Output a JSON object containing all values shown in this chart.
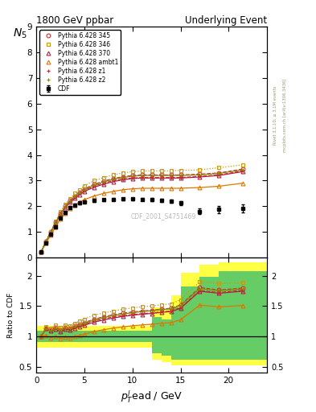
{
  "title_left": "1800 GeV ppbar",
  "title_right": "Underlying Event",
  "xlabel": "$p_T^l$ead / GeV",
  "ylabel_main": "$N_5$",
  "ylabel_ratio": "Ratio to CDF",
  "watermark": "CDF_2001_S4751469",
  "right_label": "mcplots.cern.ch [arXiv:1306.3436]",
  "right_label2": "Rivet 3.1.10; ≥ 3.1M events",
  "pt_lead": [
    0.5,
    1.0,
    1.5,
    2.0,
    2.5,
    3.0,
    3.5,
    4.0,
    4.5,
    5.0,
    6.0,
    7.0,
    8.0,
    9.0,
    10.0,
    11.0,
    12.0,
    13.0,
    14.0,
    15.0,
    17.0,
    19.0,
    21.5
  ],
  "CDF": [
    0.22,
    0.55,
    0.9,
    1.2,
    1.55,
    1.75,
    1.95,
    2.05,
    2.12,
    2.18,
    2.22,
    2.25,
    2.27,
    2.28,
    2.28,
    2.27,
    2.25,
    2.22,
    2.2,
    2.12,
    1.8,
    1.87,
    1.92
  ],
  "CDF_err": [
    0.02,
    0.03,
    0.04,
    0.04,
    0.05,
    0.05,
    0.05,
    0.05,
    0.05,
    0.05,
    0.05,
    0.05,
    0.05,
    0.05,
    0.05,
    0.05,
    0.06,
    0.06,
    0.07,
    0.09,
    0.12,
    0.14,
    0.16
  ],
  "py345": [
    0.22,
    0.62,
    1.0,
    1.38,
    1.72,
    2.0,
    2.22,
    2.4,
    2.55,
    2.68,
    2.85,
    2.98,
    3.08,
    3.15,
    3.2,
    3.22,
    3.22,
    3.22,
    3.22,
    3.22,
    3.25,
    3.3,
    3.45
  ],
  "py346": [
    0.22,
    0.64,
    1.02,
    1.42,
    1.78,
    2.08,
    2.3,
    2.5,
    2.65,
    2.8,
    3.0,
    3.12,
    3.22,
    3.3,
    3.35,
    3.38,
    3.38,
    3.38,
    3.38,
    3.4,
    3.42,
    3.5,
    3.62
  ],
  "py370": [
    0.22,
    0.62,
    0.98,
    1.35,
    1.68,
    1.95,
    2.16,
    2.32,
    2.46,
    2.58,
    2.74,
    2.86,
    2.96,
    3.03,
    3.08,
    3.1,
    3.1,
    3.1,
    3.1,
    3.1,
    3.14,
    3.2,
    3.35
  ],
  "pyambt1": [
    0.22,
    0.56,
    0.88,
    1.2,
    1.5,
    1.72,
    1.9,
    2.04,
    2.16,
    2.26,
    2.4,
    2.5,
    2.58,
    2.64,
    2.68,
    2.7,
    2.7,
    2.7,
    2.7,
    2.7,
    2.73,
    2.78,
    2.9
  ],
  "pyz1": [
    0.22,
    0.62,
    0.98,
    1.36,
    1.7,
    1.98,
    2.18,
    2.36,
    2.5,
    2.62,
    2.78,
    2.9,
    3.0,
    3.06,
    3.1,
    3.12,
    3.12,
    3.12,
    3.12,
    3.12,
    3.16,
    3.22,
    3.38
  ],
  "pyz2": [
    0.22,
    0.62,
    0.98,
    1.36,
    1.7,
    1.98,
    2.2,
    2.38,
    2.52,
    2.65,
    2.82,
    2.95,
    3.05,
    3.12,
    3.17,
    3.2,
    3.2,
    3.2,
    3.2,
    3.2,
    3.22,
    3.28,
    3.42
  ],
  "colors": {
    "CDF": "#000000",
    "py345": "#cc3333",
    "py346": "#cc9900",
    "py370": "#aa2244",
    "pyambt1": "#dd7700",
    "pyz1": "#cc2233",
    "pyz2": "#888800"
  },
  "bin_edges": [
    0,
    1,
    1.5,
    2,
    2.5,
    3,
    3.5,
    4,
    4.5,
    5,
    6,
    7,
    8,
    9,
    10,
    11,
    12,
    13,
    14,
    15,
    17,
    19,
    21,
    24
  ],
  "band_yellow_lo": [
    0.82,
    0.82,
    0.82,
    0.82,
    0.82,
    0.82,
    0.82,
    0.82,
    0.82,
    0.82,
    0.82,
    0.82,
    0.82,
    0.82,
    0.82,
    0.82,
    0.62,
    0.58,
    0.52,
    0.52,
    0.52,
    0.52,
    0.52
  ],
  "band_yellow_hi": [
    1.18,
    1.18,
    1.18,
    1.18,
    1.18,
    1.18,
    1.18,
    1.18,
    1.18,
    1.18,
    1.18,
    1.18,
    1.18,
    1.18,
    1.18,
    1.18,
    1.48,
    1.45,
    1.68,
    2.05,
    2.18,
    2.22,
    2.22
  ],
  "band_green_lo": [
    0.91,
    0.91,
    0.91,
    0.91,
    0.91,
    0.91,
    0.91,
    0.91,
    0.91,
    0.91,
    0.91,
    0.91,
    0.91,
    0.91,
    0.91,
    0.91,
    0.72,
    0.68,
    0.62,
    0.62,
    0.62,
    0.62,
    0.62
  ],
  "band_green_hi": [
    1.09,
    1.09,
    1.09,
    1.09,
    1.09,
    1.09,
    1.09,
    1.09,
    1.09,
    1.09,
    1.09,
    1.09,
    1.09,
    1.09,
    1.09,
    1.09,
    1.32,
    1.28,
    1.48,
    1.82,
    1.98,
    2.08,
    2.08
  ]
}
